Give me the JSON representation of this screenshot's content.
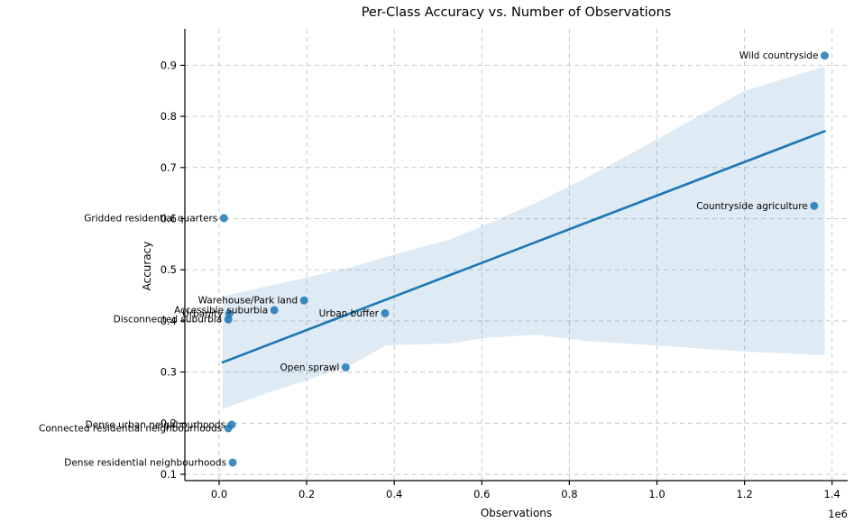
{
  "chart_data": {
    "type": "scatter",
    "title": "Per-Class Accuracy vs. Number of Observations",
    "xlabel": "Observations",
    "ylabel": "Accuracy",
    "x_offset_text": "1e6",
    "x_tick_labels": [
      "0.0",
      "0.2",
      "0.4",
      "0.6",
      "0.8",
      "1.0",
      "1.2",
      "1.4"
    ],
    "x_ticks_e6": [
      0.0,
      0.2,
      0.4,
      0.6,
      0.8,
      1.0,
      1.2,
      1.4
    ],
    "y_tick_labels": [
      "0.1",
      "0.2",
      "0.3",
      "0.4",
      "0.5",
      "0.6",
      "0.7",
      "0.8",
      "0.9"
    ],
    "y_ticks": [
      0.1,
      0.2,
      0.3,
      0.4,
      0.5,
      0.6,
      0.7,
      0.8,
      0.9
    ],
    "xlim_e6": [
      -0.078,
      1.435
    ],
    "ylim": [
      0.035,
      0.971
    ],
    "grid": "dashed",
    "legend": "none",
    "points": [
      {
        "label": "Wild countryside",
        "observations": 1383000,
        "accuracy": 0.919
      },
      {
        "label": "Countryside agriculture",
        "observations": 1359000,
        "accuracy": 0.625
      },
      {
        "label": "Gridded residential quarters",
        "observations": 11000,
        "accuracy": 0.601
      },
      {
        "label": "Warehouse/Park land",
        "observations": 194000,
        "accuracy": 0.44
      },
      {
        "label": "Accessible suburbia",
        "observations": 126000,
        "accuracy": 0.421
      },
      {
        "label": "Urban buffer",
        "observations": 379000,
        "accuracy": 0.415
      },
      {
        "label": "Urbanity",
        "observations": 23000,
        "accuracy": 0.414
      },
      {
        "label": "Disconnected suburbia",
        "observations": 21000,
        "accuracy": 0.403
      },
      {
        "label": "Open sprawl",
        "observations": 289000,
        "accuracy": 0.309
      },
      {
        "label": "Dense urban neighbourhoods",
        "observations": 29000,
        "accuracy": 0.197
      },
      {
        "label": "Connected residential neighbourhoods",
        "observations": 21000,
        "accuracy": 0.19
      },
      {
        "label": "Dense residential neighbourhoods",
        "observations": 31000,
        "accuracy": 0.123
      }
    ],
    "regression_line": {
      "x_start_obs": 8000,
      "y_start": 0.319,
      "x_end_obs": 1383000,
      "y_end": 0.771
    },
    "confidence_band": {
      "x_obs": [
        8000,
        100000,
        200000,
        300000,
        380000,
        530000,
        600000,
        721000,
        850000,
        1000000,
        1200000,
        1383000
      ],
      "lower": [
        0.228,
        0.256,
        0.284,
        0.313,
        0.352,
        0.356,
        0.366,
        0.373,
        0.36,
        0.352,
        0.34,
        0.333
      ],
      "upper": [
        0.448,
        0.466,
        0.485,
        0.505,
        0.525,
        0.56,
        0.585,
        0.63,
        0.685,
        0.755,
        0.85,
        0.898
      ]
    },
    "colors": {
      "point": "#1f77b4",
      "line": "#1f77b4",
      "band": "#1f77b4",
      "band_opacity": 0.15,
      "grid": "#c9c9c9",
      "axis": "#000000",
      "text": "#000000"
    }
  }
}
